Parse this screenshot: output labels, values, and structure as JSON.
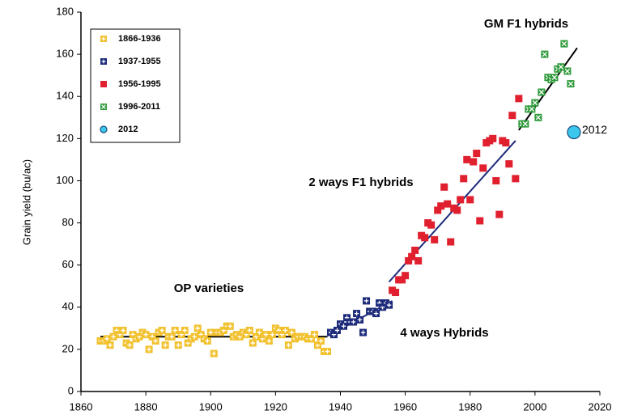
{
  "chart_data": {
    "type": "scatter",
    "ylabel": "Grain yield (bu/ac)",
    "annotations": [
      "GM F1 hybrids",
      "2 ways F1 hybrids",
      "OP varieties",
      "4 ways Hybrids"
    ],
    "xlim": [
      1860,
      2020
    ],
    "xticks": [
      1860,
      1880,
      1900,
      1920,
      1940,
      1960,
      1980,
      2000,
      2020
    ],
    "ylim": [
      0,
      180
    ],
    "yticks": [
      0,
      20,
      40,
      60,
      80,
      100,
      120,
      140,
      160,
      180
    ],
    "legend": "upper left",
    "series": [
      {
        "name": "1866-1936",
        "color": "#f2c12e",
        "marker": "square-plus",
        "x": [
          1866,
          1867,
          1868,
          1869,
          1870,
          1871,
          1872,
          1873,
          1874,
          1875,
          1876,
          1877,
          1878,
          1879,
          1880,
          1881,
          1882,
          1883,
          1884,
          1885,
          1886,
          1887,
          1888,
          1889,
          1890,
          1891,
          1892,
          1893,
          1894,
          1895,
          1896,
          1897,
          1898,
          1899,
          1900,
          1901,
          1902,
          1903,
          1904,
          1905,
          1906,
          1907,
          1908,
          1909,
          1910,
          1911,
          1912,
          1913,
          1914,
          1915,
          1916,
          1917,
          1918,
          1919,
          1920,
          1921,
          1922,
          1923,
          1924,
          1925,
          1926,
          1927,
          1928,
          1929,
          1930,
          1931,
          1932,
          1933,
          1934,
          1935,
          1936
        ],
        "values": [
          24,
          24,
          25,
          22,
          26,
          29,
          27,
          29,
          23,
          22,
          27,
          25,
          26,
          28,
          27,
          20,
          26,
          24,
          28,
          29,
          22,
          26,
          26,
          29,
          22,
          27,
          29,
          23,
          25,
          26,
          30,
          27,
          25,
          24,
          28,
          18,
          28,
          28,
          29,
          31,
          31,
          26,
          27,
          26,
          28,
          27,
          29,
          23,
          26,
          28,
          25,
          27,
          24,
          27,
          30,
          29,
          27,
          29,
          22,
          28,
          25,
          26,
          26,
          26,
          25,
          25,
          27,
          22,
          24,
          19,
          19
        ]
      },
      {
        "name": "1937-1955",
        "color": "#1c2a7a",
        "marker": "square-plus",
        "x": [
          1937,
          1938,
          1939,
          1940,
          1941,
          1942,
          1943,
          1944,
          1945,
          1946,
          1947,
          1948,
          1949,
          1950,
          1951,
          1952,
          1953,
          1954,
          1955
        ],
        "values": [
          28,
          27,
          29,
          32,
          31,
          35,
          33,
          33,
          37,
          34,
          28,
          43,
          38,
          38,
          37,
          42,
          40,
          42,
          41
        ]
      },
      {
        "name": "1956-1995",
        "color": "#e0202e",
        "marker": "square",
        "x": [
          1956,
          1957,
          1958,
          1959,
          1960,
          1961,
          1962,
          1963,
          1964,
          1965,
          1966,
          1967,
          1968,
          1969,
          1970,
          1971,
          1972,
          1973,
          1974,
          1975,
          1976,
          1977,
          1978,
          1979,
          1980,
          1981,
          1982,
          1983,
          1984,
          1985,
          1986,
          1987,
          1988,
          1989,
          1990,
          1991,
          1992,
          1993,
          1994,
          1995
        ],
        "values": [
          48,
          47,
          53,
          53,
          55,
          62,
          64,
          67,
          62,
          74,
          73,
          80,
          79,
          72,
          86,
          88,
          97,
          89,
          71,
          87,
          86,
          91,
          101,
          110,
          91,
          109,
          113,
          81,
          106,
          118,
          119,
          120,
          100,
          84,
          119,
          118,
          108,
          131,
          101,
          139
        ]
      },
      {
        "name": "1996-2011",
        "color": "#2e9a3a",
        "marker": "square-x",
        "x": [
          1996,
          1997,
          1998,
          1999,
          2000,
          2001,
          2002,
          2003,
          2004,
          2005,
          2006,
          2007,
          2008,
          2009,
          2010,
          2011
        ],
        "values": [
          127,
          127,
          134,
          134,
          137,
          130,
          142,
          160,
          149,
          148,
          149,
          153,
          154,
          165,
          152,
          146
        ]
      },
      {
        "name": "2012",
        "color": "#3cc8ee",
        "marker": "circle",
        "x": [
          2012
        ],
        "values": [
          123
        ]
      }
    ],
    "trend_lines": [
      {
        "color": "#000000",
        "x": [
          1866,
          1936
        ],
        "values": [
          26,
          26
        ]
      },
      {
        "color": "#1c2a7a",
        "x": [
          1937,
          1956
        ],
        "values": [
          27,
          43
        ]
      },
      {
        "color": "#1c2a7a",
        "x": [
          1955,
          1994
        ],
        "values": [
          52,
          119
        ]
      },
      {
        "color": "#000000",
        "x": [
          1995,
          2013
        ],
        "values": [
          124,
          163
        ]
      }
    ]
  }
}
